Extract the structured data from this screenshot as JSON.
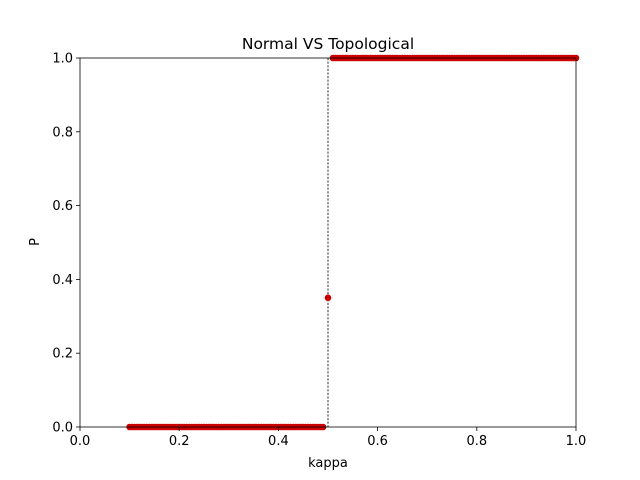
{
  "chart_data": {
    "type": "scatter",
    "title": "Normal VS Topological",
    "xlabel": "kappa",
    "ylabel": "P",
    "xlim": [
      0.0,
      1.0
    ],
    "ylim": [
      0.0,
      1.0
    ],
    "xticks": [
      "0.0",
      "0.2",
      "0.4",
      "0.6",
      "0.8",
      "1.0"
    ],
    "yticks": [
      "0.0",
      "0.2",
      "0.4",
      "0.6",
      "0.8",
      "1.0"
    ],
    "grid": false,
    "legend": "none",
    "marker_color": "#cc0000",
    "reference_line": {
      "x": 0.5,
      "style": "dashed",
      "color": "#000000"
    },
    "series": [
      {
        "points_low": {
          "x_start": 0.1,
          "x_end": 0.49,
          "step": 0.005,
          "y": 0.0
        },
        "points_mid": [
          {
            "x": 0.5,
            "y": 0.35
          }
        ],
        "points_high": {
          "x_start": 0.51,
          "x_end": 1.0,
          "step": 0.005,
          "y": 1.0
        }
      }
    ]
  }
}
